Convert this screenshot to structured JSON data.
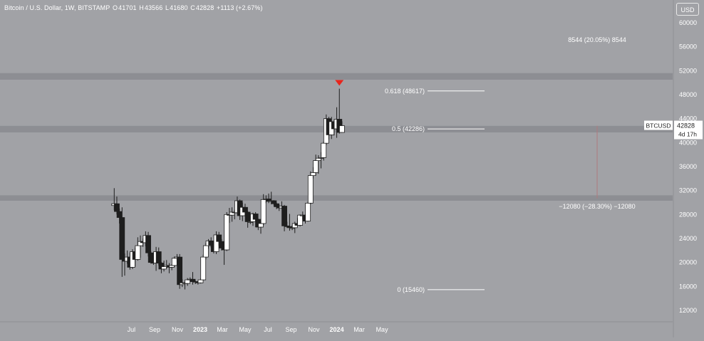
{
  "header": {
    "title": "Bitcoin / U.S. Dollar, 1W, BITSTAMP",
    "open_label": "O",
    "open": "41701",
    "high_label": "H",
    "high": "43566",
    "low_label": "L",
    "low": "41680",
    "close_label": "C",
    "close": "42828",
    "change": "+1113 (+2.67%)"
  },
  "currency_button": "USD",
  "price_tag": {
    "symbol": "BTCUSD",
    "price": "42828",
    "countdown": "4d 17h"
  },
  "colors": {
    "background": "#a1a2a6",
    "bull_body": "#ffffff",
    "bear_body": "#1e1e1e",
    "wick": "#1e1e1e",
    "zone": "#8a8b8f",
    "signal_arrow": "#e8251c",
    "text": "#ffffff"
  },
  "chart_data": {
    "type": "candlestick",
    "symbol": "BTCUSD",
    "interval": "1W",
    "y_axis": {
      "min": 10000,
      "max": 62000,
      "ticks": [
        12000,
        16000,
        20000,
        24000,
        28000,
        32000,
        36000,
        40000,
        44000,
        48000,
        52000,
        56000,
        60000
      ],
      "tick_labels": [
        "12000",
        "16000",
        "20000",
        "24000",
        "28000",
        "32000",
        "36000",
        "40000",
        "44000",
        "48000",
        "52000",
        "56000",
        "60000"
      ]
    },
    "x_axis": {
      "labels": [
        "Jul",
        "Sep",
        "Nov",
        "2023",
        "Mar",
        "May",
        "Jul",
        "Sep",
        "Nov",
        "2024",
        "Mar",
        "May"
      ],
      "label_dates": [
        "2022-07-01",
        "2022-09-01",
        "2022-11-01",
        "2023-01-01",
        "2023-03-01",
        "2023-05-01",
        "2023-07-01",
        "2023-09-01",
        "2023-11-01",
        "2024-01-01",
        "2024-03-01",
        "2024-05-01"
      ]
    },
    "candles": [
      {
        "date": "2022-05-16",
        "o": 29500,
        "h": 32400,
        "l": 28700,
        "c": 29800
      },
      {
        "date": "2022-05-23",
        "o": 29800,
        "h": 31000,
        "l": 28000,
        "c": 28500
      },
      {
        "date": "2022-05-30",
        "o": 28500,
        "h": 29000,
        "l": 26500,
        "c": 27500
      },
      {
        "date": "2022-06-06",
        "o": 27500,
        "h": 29200,
        "l": 17600,
        "c": 20500
      },
      {
        "date": "2022-06-13",
        "o": 20500,
        "h": 21500,
        "l": 17800,
        "c": 20200
      },
      {
        "date": "2022-06-20",
        "o": 20200,
        "h": 22000,
        "l": 19800,
        "c": 20900
      },
      {
        "date": "2022-06-27",
        "o": 20900,
        "h": 21600,
        "l": 18800,
        "c": 19200
      },
      {
        "date": "2022-07-04",
        "o": 19200,
        "h": 22200,
        "l": 18900,
        "c": 21800
      },
      {
        "date": "2022-07-11",
        "o": 21800,
        "h": 22500,
        "l": 19300,
        "c": 20500
      },
      {
        "date": "2022-07-18",
        "o": 20500,
        "h": 24200,
        "l": 20300,
        "c": 22800
      },
      {
        "date": "2022-07-25",
        "o": 22800,
        "h": 24500,
        "l": 20800,
        "c": 23500
      },
      {
        "date": "2022-08-01",
        "o": 23500,
        "h": 24000,
        "l": 22600,
        "c": 23300
      },
      {
        "date": "2022-08-08",
        "o": 23300,
        "h": 25200,
        "l": 22700,
        "c": 24500
      },
      {
        "date": "2022-08-15",
        "o": 24500,
        "h": 25100,
        "l": 21000,
        "c": 21600
      },
      {
        "date": "2022-08-22",
        "o": 21600,
        "h": 21900,
        "l": 19800,
        "c": 20000
      },
      {
        "date": "2022-08-29",
        "o": 20000,
        "h": 20500,
        "l": 19600,
        "c": 19900
      },
      {
        "date": "2022-09-05",
        "o": 19900,
        "h": 22600,
        "l": 18600,
        "c": 21800
      },
      {
        "date": "2022-09-12",
        "o": 21800,
        "h": 22500,
        "l": 19500,
        "c": 19900
      },
      {
        "date": "2022-09-19",
        "o": 19900,
        "h": 20100,
        "l": 18200,
        "c": 18900
      },
      {
        "date": "2022-09-26",
        "o": 18900,
        "h": 20300,
        "l": 18500,
        "c": 19300
      },
      {
        "date": "2022-10-03",
        "o": 19300,
        "h": 20400,
        "l": 19000,
        "c": 19500
      },
      {
        "date": "2022-10-10",
        "o": 19500,
        "h": 19900,
        "l": 18200,
        "c": 19200
      },
      {
        "date": "2022-10-17",
        "o": 19200,
        "h": 19700,
        "l": 18700,
        "c": 19500
      },
      {
        "date": "2022-10-24",
        "o": 19500,
        "h": 21000,
        "l": 19200,
        "c": 20700
      },
      {
        "date": "2022-10-31",
        "o": 20700,
        "h": 21400,
        "l": 20000,
        "c": 20900
      },
      {
        "date": "2022-11-07",
        "o": 20900,
        "h": 21400,
        "l": 15600,
        "c": 16300
      },
      {
        "date": "2022-11-14",
        "o": 16300,
        "h": 17200,
        "l": 15900,
        "c": 16600
      },
      {
        "date": "2022-11-21",
        "o": 16600,
        "h": 16800,
        "l": 15500,
        "c": 16500
      },
      {
        "date": "2022-11-28",
        "o": 16500,
        "h": 17400,
        "l": 16100,
        "c": 17100
      },
      {
        "date": "2022-12-05",
        "o": 17100,
        "h": 17500,
        "l": 16800,
        "c": 17200
      },
      {
        "date": "2022-12-12",
        "o": 17200,
        "h": 18400,
        "l": 16300,
        "c": 16800
      },
      {
        "date": "2022-12-19",
        "o": 16800,
        "h": 17000,
        "l": 16400,
        "c": 16800
      },
      {
        "date": "2022-12-26",
        "o": 16800,
        "h": 16900,
        "l": 16300,
        "c": 16600
      },
      {
        "date": "2023-01-02",
        "o": 16600,
        "h": 17300,
        "l": 16500,
        "c": 17100
      },
      {
        "date": "2023-01-09",
        "o": 17100,
        "h": 21300,
        "l": 17000,
        "c": 20900
      },
      {
        "date": "2023-01-16",
        "o": 20900,
        "h": 23300,
        "l": 20500,
        "c": 22800
      },
      {
        "date": "2023-01-23",
        "o": 22800,
        "h": 23900,
        "l": 22300,
        "c": 23600
      },
      {
        "date": "2023-01-30",
        "o": 23600,
        "h": 24200,
        "l": 22500,
        "c": 22900
      },
      {
        "date": "2023-02-06",
        "o": 22900,
        "h": 23400,
        "l": 21500,
        "c": 21800
      },
      {
        "date": "2023-02-13",
        "o": 21800,
        "h": 25200,
        "l": 21400,
        "c": 24600
      },
      {
        "date": "2023-02-20",
        "o": 24600,
        "h": 25100,
        "l": 22800,
        "c": 23500
      },
      {
        "date": "2023-02-27",
        "o": 23500,
        "h": 23900,
        "l": 22000,
        "c": 22400
      },
      {
        "date": "2023-03-06",
        "o": 22400,
        "h": 22600,
        "l": 19600,
        "c": 22100
      },
      {
        "date": "2023-03-13",
        "o": 22100,
        "h": 28400,
        "l": 21900,
        "c": 28000
      },
      {
        "date": "2023-03-20",
        "o": 28000,
        "h": 29100,
        "l": 26600,
        "c": 27900
      },
      {
        "date": "2023-03-27",
        "o": 27900,
        "h": 29200,
        "l": 26800,
        "c": 28400
      },
      {
        "date": "2023-04-03",
        "o": 28400,
        "h": 28800,
        "l": 27200,
        "c": 28300
      },
      {
        "date": "2023-04-10",
        "o": 28300,
        "h": 31000,
        "l": 28200,
        "c": 30300
      },
      {
        "date": "2023-04-17",
        "o": 30300,
        "h": 30500,
        "l": 27100,
        "c": 27800
      },
      {
        "date": "2023-04-24",
        "o": 27800,
        "h": 30000,
        "l": 26900,
        "c": 29200
      },
      {
        "date": "2023-05-01",
        "o": 29200,
        "h": 29800,
        "l": 27700,
        "c": 28400
      },
      {
        "date": "2023-05-08",
        "o": 28400,
        "h": 28600,
        "l": 25800,
        "c": 26800
      },
      {
        "date": "2023-05-15",
        "o": 26800,
        "h": 27600,
        "l": 26400,
        "c": 26800
      },
      {
        "date": "2023-05-22",
        "o": 26800,
        "h": 28300,
        "l": 26100,
        "c": 28100
      },
      {
        "date": "2023-05-29",
        "o": 28100,
        "h": 28400,
        "l": 25900,
        "c": 27200
      },
      {
        "date": "2023-06-05",
        "o": 27200,
        "h": 27300,
        "l": 25400,
        "c": 25900
      },
      {
        "date": "2023-06-12",
        "o": 25900,
        "h": 26800,
        "l": 24800,
        "c": 26500
      },
      {
        "date": "2023-06-19",
        "o": 26500,
        "h": 31400,
        "l": 26200,
        "c": 30500
      },
      {
        "date": "2023-06-26",
        "o": 30500,
        "h": 31200,
        "l": 29900,
        "c": 30600
      },
      {
        "date": "2023-07-03",
        "o": 30600,
        "h": 31500,
        "l": 29900,
        "c": 30200
      },
      {
        "date": "2023-07-10",
        "o": 30200,
        "h": 31800,
        "l": 29700,
        "c": 30300
      },
      {
        "date": "2023-07-17",
        "o": 30300,
        "h": 30400,
        "l": 29500,
        "c": 29800
      },
      {
        "date": "2023-07-24",
        "o": 29800,
        "h": 30000,
        "l": 28900,
        "c": 29300
      },
      {
        "date": "2023-07-31",
        "o": 29300,
        "h": 29700,
        "l": 28600,
        "c": 29100
      },
      {
        "date": "2023-08-07",
        "o": 29100,
        "h": 30200,
        "l": 28900,
        "c": 29400
      },
      {
        "date": "2023-08-14",
        "o": 29400,
        "h": 29600,
        "l": 25200,
        "c": 26100
      },
      {
        "date": "2023-08-21",
        "o": 26100,
        "h": 26800,
        "l": 25800,
        "c": 26000
      },
      {
        "date": "2023-08-28",
        "o": 26000,
        "h": 28100,
        "l": 25300,
        "c": 25800
      },
      {
        "date": "2023-09-04",
        "o": 25800,
        "h": 26200,
        "l": 25400,
        "c": 25800
      },
      {
        "date": "2023-09-11",
        "o": 25800,
        "h": 26800,
        "l": 24900,
        "c": 26500
      },
      {
        "date": "2023-09-18",
        "o": 26500,
        "h": 27400,
        "l": 26000,
        "c": 26200
      },
      {
        "date": "2023-09-25",
        "o": 26200,
        "h": 28000,
        "l": 26000,
        "c": 27900
      },
      {
        "date": "2023-10-02",
        "o": 27900,
        "h": 28500,
        "l": 27200,
        "c": 27900
      },
      {
        "date": "2023-10-09",
        "o": 27900,
        "h": 28000,
        "l": 26500,
        "c": 26900
      },
      {
        "date": "2023-10-16",
        "o": 26900,
        "h": 30200,
        "l": 26800,
        "c": 29900
      },
      {
        "date": "2023-10-23",
        "o": 29900,
        "h": 35200,
        "l": 29700,
        "c": 34500
      },
      {
        "date": "2023-10-30",
        "o": 34500,
        "h": 35900,
        "l": 34000,
        "c": 35000
      },
      {
        "date": "2023-11-06",
        "o": 35000,
        "h": 38000,
        "l": 34500,
        "c": 37000
      },
      {
        "date": "2023-11-13",
        "o": 37000,
        "h": 37900,
        "l": 34800,
        "c": 37400
      },
      {
        "date": "2023-11-20",
        "o": 37400,
        "h": 38400,
        "l": 35700,
        "c": 37500
      },
      {
        "date": "2023-11-27",
        "o": 37500,
        "h": 40200,
        "l": 37000,
        "c": 39900
      },
      {
        "date": "2023-12-04",
        "o": 39900,
        "h": 44700,
        "l": 39600,
        "c": 44000
      },
      {
        "date": "2023-12-11",
        "o": 44000,
        "h": 44300,
        "l": 40500,
        "c": 41300
      },
      {
        "date": "2023-12-18",
        "o": 41300,
        "h": 44300,
        "l": 40600,
        "c": 43500
      },
      {
        "date": "2023-12-25",
        "o": 43500,
        "h": 43800,
        "l": 41200,
        "c": 42300
      },
      {
        "date": "2024-01-01",
        "o": 42300,
        "h": 45900,
        "l": 40800,
        "c": 43900
      },
      {
        "date": "2024-01-08",
        "o": 43900,
        "h": 49000,
        "l": 41500,
        "c": 41700
      },
      {
        "date": "2024-01-15",
        "o": 41701,
        "h": 43566,
        "l": 41680,
        "c": 42828
      }
    ],
    "zones": [
      {
        "name": "resistance",
        "from": 50500,
        "to": 51600
      },
      {
        "name": "middle",
        "from": 41700,
        "to": 42800
      },
      {
        "name": "support",
        "from": 30300,
        "to": 31200
      }
    ],
    "fib_levels": [
      {
        "label": "0.618 (48617)",
        "value": 48617
      },
      {
        "label": "0.5 (42286)",
        "value": 42286
      },
      {
        "label": "0 (15460)",
        "value": 15460
      }
    ],
    "measurements": [
      {
        "label": "8544 (20.05%) 8544",
        "value": 8544,
        "percent": 20.05
      },
      {
        "label": "−12080 (−28.30%) −12080",
        "value": -12080,
        "percent": -28.3
      }
    ],
    "signal": {
      "label": "sell-signal-arrow",
      "date": "2024-01-08",
      "price": 49500
    }
  }
}
